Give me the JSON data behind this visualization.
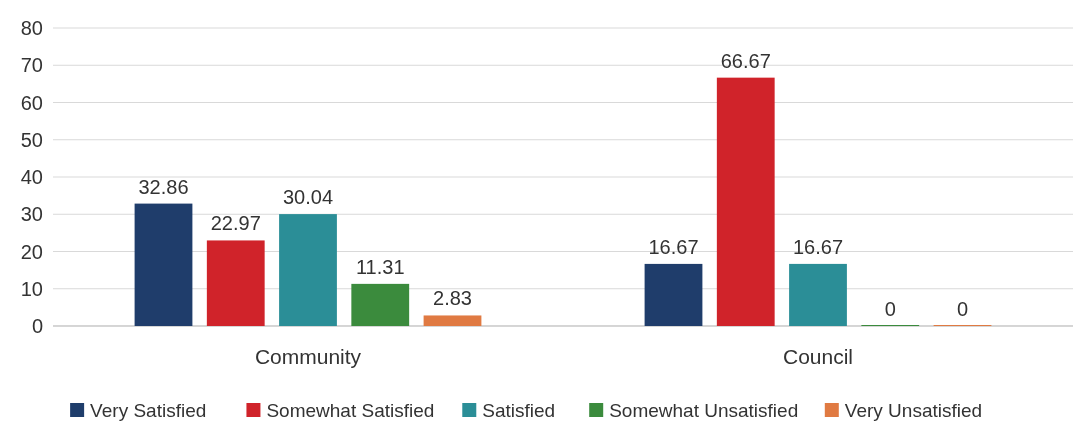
{
  "chart_data": {
    "type": "bar",
    "categories": [
      "Community",
      "Council"
    ],
    "series": [
      {
        "name": "Very Satisfied",
        "color": "#1f3d6b",
        "values": [
          32.86,
          16.67
        ]
      },
      {
        "name": "Somewhat Satisfied",
        "color": "#d0232a",
        "values": [
          22.97,
          66.67
        ]
      },
      {
        "name": "Satisfied",
        "color": "#2b8e97",
        "values": [
          30.04,
          16.67
        ]
      },
      {
        "name": "Somewhat Unsatisfied",
        "color": "#3b8b3d",
        "values": [
          11.31,
          0
        ]
      },
      {
        "name": "Very Unsatisfied",
        "color": "#e07a42",
        "values": [
          2.83,
          0
        ]
      }
    ],
    "ylim": [
      0,
      80
    ],
    "yticks": [
      0,
      10,
      20,
      30,
      40,
      50,
      60,
      70,
      80
    ],
    "grid": "y",
    "legend": "bottom",
    "data_labels": true
  }
}
